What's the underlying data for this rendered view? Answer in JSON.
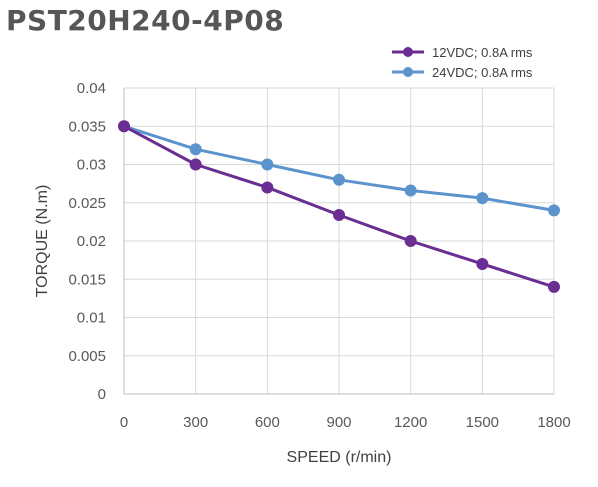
{
  "chart_data": {
    "type": "line",
    "title": "PST20H240-4P08",
    "xlabel": "SPEED (r/min)",
    "ylabel": "TORQUE (N.m)",
    "x": [
      0,
      300,
      600,
      900,
      1200,
      1500,
      1800
    ],
    "x_tick_labels": [
      "0",
      "300",
      "600",
      "900",
      "1200",
      "1500",
      "1800"
    ],
    "ylim": [
      0,
      0.04
    ],
    "y_tick_labels": [
      "0",
      "0.005",
      "0.01",
      "0.015",
      "0.02",
      "0.025",
      "0.03",
      "0.035",
      "0.04"
    ],
    "grid": "horizontal",
    "legend_position": "top-right",
    "series": [
      {
        "name": "12VDC; 0.8A rms",
        "color": "#6a2e92",
        "values": [
          0.035,
          0.03,
          0.027,
          0.0234,
          0.02,
          0.017,
          0.014
        ]
      },
      {
        "name": "24VDC; 0.8A rms",
        "color": "#5b93cc",
        "values": [
          0.035,
          0.032,
          0.03,
          0.028,
          0.0266,
          0.0256,
          0.024
        ]
      }
    ]
  }
}
